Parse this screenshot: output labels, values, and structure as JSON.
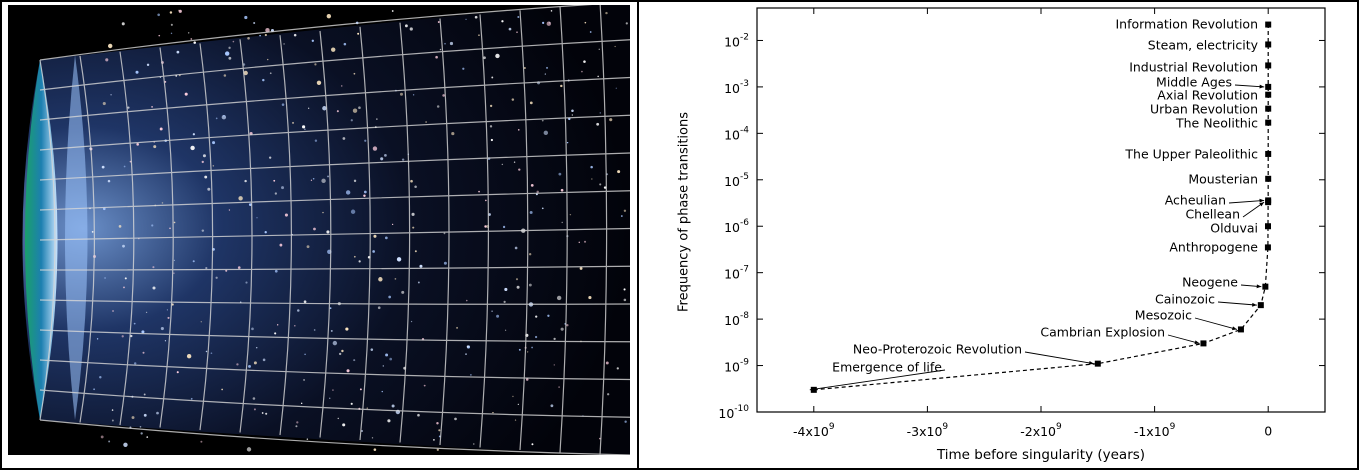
{
  "chart_data": {
    "type": "scatter",
    "x_label": "Time before singularity (years)",
    "y_label": "Frequency of phase transitions",
    "log_y": true,
    "color": "#000000",
    "xlim": [
      -4500000000,
      500000000
    ],
    "ylim": [
      1e-10,
      0.05
    ],
    "xticks": [
      {
        "value": -4000000000,
        "label": "-4x10",
        "exponent": "9"
      },
      {
        "value": -3000000000,
        "label": "-3x10",
        "exponent": "9"
      },
      {
        "value": -2000000000,
        "label": "-2x10",
        "exponent": "9"
      },
      {
        "value": -1000000000,
        "label": "-1x10",
        "exponent": "9"
      },
      0
    ],
    "yticks": [
      {
        "value": 1e-10,
        "label": "10",
        "exponent": "-10"
      },
      {
        "value": 1e-09,
        "label": "10",
        "exponent": "-9"
      },
      {
        "value": 1e-08,
        "label": "10",
        "exponent": "-8"
      },
      {
        "value": 1e-07,
        "label": "10",
        "exponent": "-7"
      },
      {
        "value": 1e-06,
        "label": "10",
        "exponent": "-6"
      },
      {
        "value": 1e-05,
        "label": "10",
        "exponent": "-5"
      },
      {
        "value": 0.0001,
        "label": "10",
        "exponent": "-4"
      },
      {
        "value": 0.001,
        "label": "10",
        "exponent": "-3"
      },
      {
        "value": 0.01,
        "label": "10",
        "exponent": "-2"
      }
    ],
    "labels": [
      "Emergence of life",
      "Neo-Proterozoic Revolution",
      "Cambrian Explosion",
      "Mesozoic",
      "Cainozoic",
      "Neogene",
      "Anthropogene",
      "Olduvai",
      "Chellean",
      "Acheulian",
      "Mousterian",
      "The Upper Paleolithic",
      "The Neolithic",
      "Urban Revolution",
      "Axial Revolution",
      "Middle Ages",
      "Industrial Revolution",
      "Steam, electricity",
      "Information Revolution"
    ],
    "x": [
      -4000000000,
      -1500000000,
      -570000000,
      -240000000,
      -65000000,
      -25000000,
      -2500000,
      -1800000,
      -700000,
      -400000,
      -100000,
      -40000,
      -10000,
      -5000,
      -2500,
      -1000,
      -250,
      -150,
      -50
    ],
    "values": [
      3e-10,
      1.1e-09,
      3e-09,
      6e-09,
      2e-08,
      5e-08,
      3.5e-07,
      1e-06,
      3.3e-06,
      3.6e-06,
      1.05e-05,
      3.6e-05,
      0.00017,
      0.00034,
      0.00068,
      0.001,
      0.0029,
      0.0082,
      0.022
    ]
  }
}
